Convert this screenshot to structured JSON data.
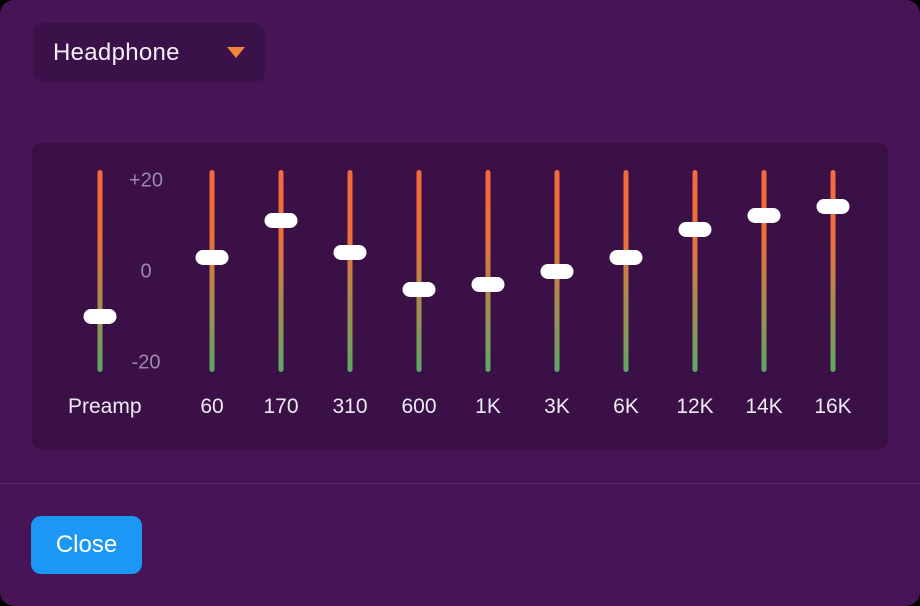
{
  "window": {
    "background": "#471456",
    "panel_background": "#3a1047"
  },
  "device_selector": {
    "label": "Headphone",
    "icon": "chevron-down",
    "icon_color": "#f0853e"
  },
  "equalizer": {
    "scale": {
      "max_label": "+20",
      "mid_label": "0",
      "min_label": "-20",
      "max_value": 20,
      "min_value": -20
    },
    "slider_range": {
      "top_db": 22,
      "bottom_db": -22
    },
    "bands": [
      {
        "label": "Preamp",
        "value_db": -10
      },
      {
        "label": "60",
        "value_db": 3
      },
      {
        "label": "170",
        "value_db": 11
      },
      {
        "label": "310",
        "value_db": 4
      },
      {
        "label": "600",
        "value_db": -4
      },
      {
        "label": "1K",
        "value_db": -3
      },
      {
        "label": "3K",
        "value_db": 0
      },
      {
        "label": "6K",
        "value_db": 3
      },
      {
        "label": "12K",
        "value_db": 9
      },
      {
        "label": "14K",
        "value_db": 12
      },
      {
        "label": "16K",
        "value_db": 14
      }
    ],
    "colors": {
      "track_top": "#f5693a",
      "track_bottom": "#5da964",
      "handle": "#ffffff",
      "scale_text": "#9c89ad",
      "band_text": "#edeaf3"
    }
  },
  "footer": {
    "close_label": "Close",
    "close_color": "#1c97f3"
  }
}
